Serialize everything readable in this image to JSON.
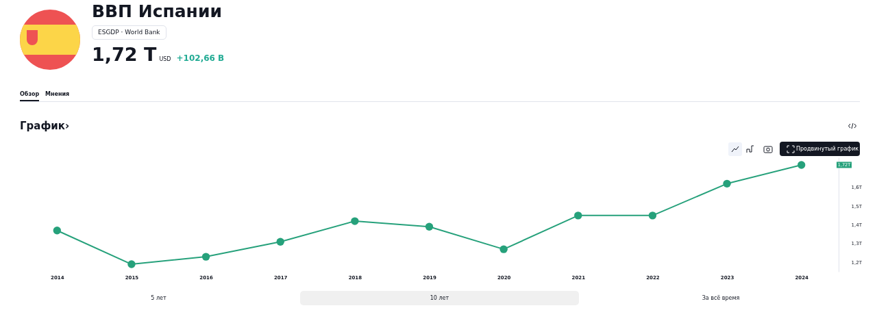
{
  "chart_data": {
    "type": "line",
    "title": "ВВП Испании",
    "subtitle": "ESGDP · World Bank",
    "categories": [
      "2014",
      "2015",
      "2016",
      "2017",
      "2018",
      "2019",
      "2020",
      "2021",
      "2022",
      "2023",
      "2024"
    ],
    "series": [
      {
        "color": "#26a17b",
        "values": [
          1.37,
          1.19,
          1.23,
          1.31,
          1.42,
          1.39,
          1.27,
          1.45,
          1.45,
          1.62,
          1.72
        ]
      }
    ],
    "ylim": [
      1.15,
      1.76
    ],
    "yticks": [
      {
        "value": 1.2,
        "label": "1,2T"
      },
      {
        "value": 1.3,
        "label": "1,3T"
      },
      {
        "value": 1.4,
        "label": "1,4T"
      },
      {
        "value": 1.5,
        "label": "1,5T"
      },
      {
        "value": 1.6,
        "label": "1,6T"
      }
    ],
    "marker": "circle",
    "grid": false,
    "annotations": [
      "1,72 T",
      "USD",
      "+102,66 B",
      "Обзор",
      "Мнения",
      "График›",
      "Продвинутый график",
      "5 лет",
      "10 лет",
      "За всё время",
      "1,72T"
    ]
  }
}
